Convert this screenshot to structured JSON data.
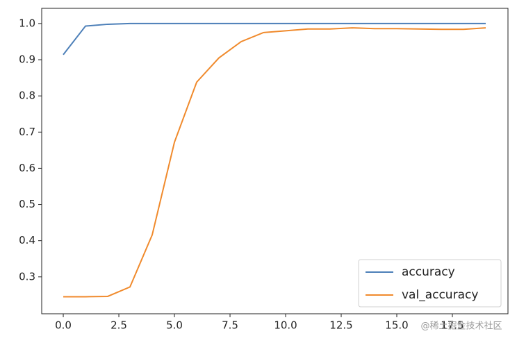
{
  "chart_data": {
    "type": "line",
    "x": [
      0,
      1,
      2,
      3,
      4,
      5,
      6,
      7,
      8,
      9,
      10,
      11,
      12,
      13,
      14,
      15,
      16,
      17,
      18,
      19
    ],
    "series": [
      {
        "name": "accuracy",
        "color": "#4c7fb8",
        "values": [
          0.914,
          0.993,
          0.998,
          1.0,
          1.0,
          1.0,
          1.0,
          1.0,
          1.0,
          1.0,
          1.0,
          1.0,
          1.0,
          1.0,
          1.0,
          1.0,
          1.0,
          1.0,
          1.0,
          1.0
        ]
      },
      {
        "name": "val_accuracy",
        "color": "#f08a2c",
        "values": [
          0.245,
          0.245,
          0.246,
          0.272,
          0.416,
          0.672,
          0.838,
          0.905,
          0.95,
          0.975,
          0.98,
          0.985,
          0.985,
          0.988,
          0.986,
          0.986,
          0.985,
          0.984,
          0.984,
          0.988
        ]
      }
    ],
    "xlim": [
      -0.97,
      20.0
    ],
    "ylim": [
      0.198,
      1.042
    ],
    "xticks": [
      {
        "value": 0,
        "label": "0.0"
      },
      2.5,
      {
        "value": 5,
        "label": "5.0"
      },
      7.5,
      {
        "value": 10,
        "label": "10.0"
      },
      12.5,
      {
        "value": 15,
        "label": "15.0"
      },
      17.5
    ],
    "yticks": [
      0.3,
      0.4,
      0.5,
      0.6,
      0.7,
      0.8,
      0.9,
      {
        "value": 1.0,
        "label": "1.0"
      }
    ],
    "legend": "lower right",
    "watermark": "@稀土掘金技术社区"
  }
}
